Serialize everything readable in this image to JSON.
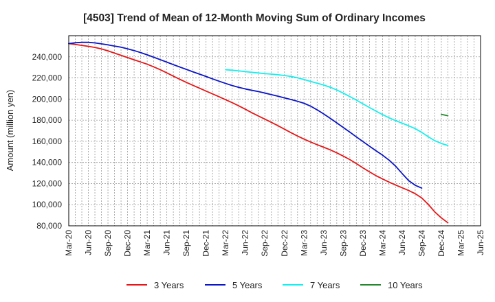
{
  "chart_data": {
    "type": "line",
    "title": "[4503]  Trend of Mean of 12-Month Moving Sum of Ordinary Incomes",
    "xlabel": "",
    "ylabel": "Amount (million yen)",
    "ylim": [
      80000,
      260000
    ],
    "yticks": [
      80000,
      100000,
      120000,
      140000,
      160000,
      180000,
      200000,
      220000,
      240000
    ],
    "ytick_labels": [
      "80,000",
      "100,000",
      "120,000",
      "140,000",
      "160,000",
      "180,000",
      "200,000",
      "220,000",
      "240,000"
    ],
    "x_start": "Mar-20",
    "x_months": 63,
    "xticks": [
      0,
      3,
      6,
      9,
      12,
      15,
      18,
      21,
      24,
      27,
      30,
      33,
      36,
      39,
      42,
      45,
      48,
      51,
      54,
      57,
      60,
      63
    ],
    "xtick_labels": [
      "Mar-20",
      "Jun-20",
      "Sep-20",
      "Dec-20",
      "Mar-21",
      "Jun-21",
      "Sep-21",
      "Dec-21",
      "Mar-22",
      "Jun-22",
      "Sep-22",
      "Dec-22",
      "Mar-23",
      "Jun-23",
      "Sep-23",
      "Dec-23",
      "Mar-24",
      "Jun-24",
      "Sep-24",
      "Dec-24",
      "Mar-25",
      "Jun-25"
    ],
    "grid": true,
    "legend_position": "bottom",
    "series": [
      {
        "name": "3 Years",
        "color": "#e81416",
        "start_month": 0,
        "values": [
          252500,
          251700,
          250800,
          249900,
          248900,
          247500,
          245600,
          243500,
          241400,
          239300,
          237200,
          235100,
          233000,
          230500,
          227800,
          224800,
          221700,
          218700,
          215800,
          213000,
          210300,
          207600,
          204900,
          202200,
          199400,
          196600,
          193600,
          190400,
          187100,
          184000,
          181000,
          177900,
          174800,
          171500,
          168200,
          165000,
          162100,
          159300,
          156800,
          154400,
          151900,
          149100,
          146000,
          142700,
          138900,
          134900,
          131100,
          127500,
          124400,
          121400,
          118600,
          116000,
          113400,
          110400,
          106400,
          100300,
          93100,
          87500,
          82900
        ]
      },
      {
        "name": "5 Years",
        "color": "#0a14c8",
        "start_month": 0,
        "values": [
          252500,
          253300,
          253700,
          253700,
          253200,
          252300,
          251300,
          250200,
          249100,
          247600,
          245900,
          244000,
          241900,
          239600,
          237300,
          235000,
          232600,
          230300,
          228100,
          225800,
          223600,
          221400,
          219100,
          216900,
          214800,
          212800,
          211100,
          209600,
          208300,
          207100,
          205700,
          204200,
          202700,
          201100,
          199600,
          197900,
          196000,
          193300,
          189800,
          185900,
          181800,
          177500,
          173100,
          168700,
          164200,
          159800,
          155400,
          151100,
          146900,
          142200,
          136500,
          129500,
          122800,
          118400,
          115700
        ]
      },
      {
        "name": "7 Years",
        "color": "#10f0f0",
        "start_month": 24,
        "values": [
          227800,
          227300,
          226700,
          226000,
          225300,
          224700,
          224100,
          223600,
          223000,
          222300,
          221400,
          220100,
          218500,
          216700,
          215000,
          213300,
          211200,
          208600,
          205600,
          202400,
          199000,
          195500,
          192000,
          188600,
          185300,
          182300,
          179600,
          177200,
          174700,
          172000,
          168500,
          164300,
          160600,
          158000,
          156000
        ]
      },
      {
        "name": "10 Years",
        "color": "#22882a",
        "start_month": 57,
        "values": [
          185500,
          184200
        ]
      }
    ]
  }
}
